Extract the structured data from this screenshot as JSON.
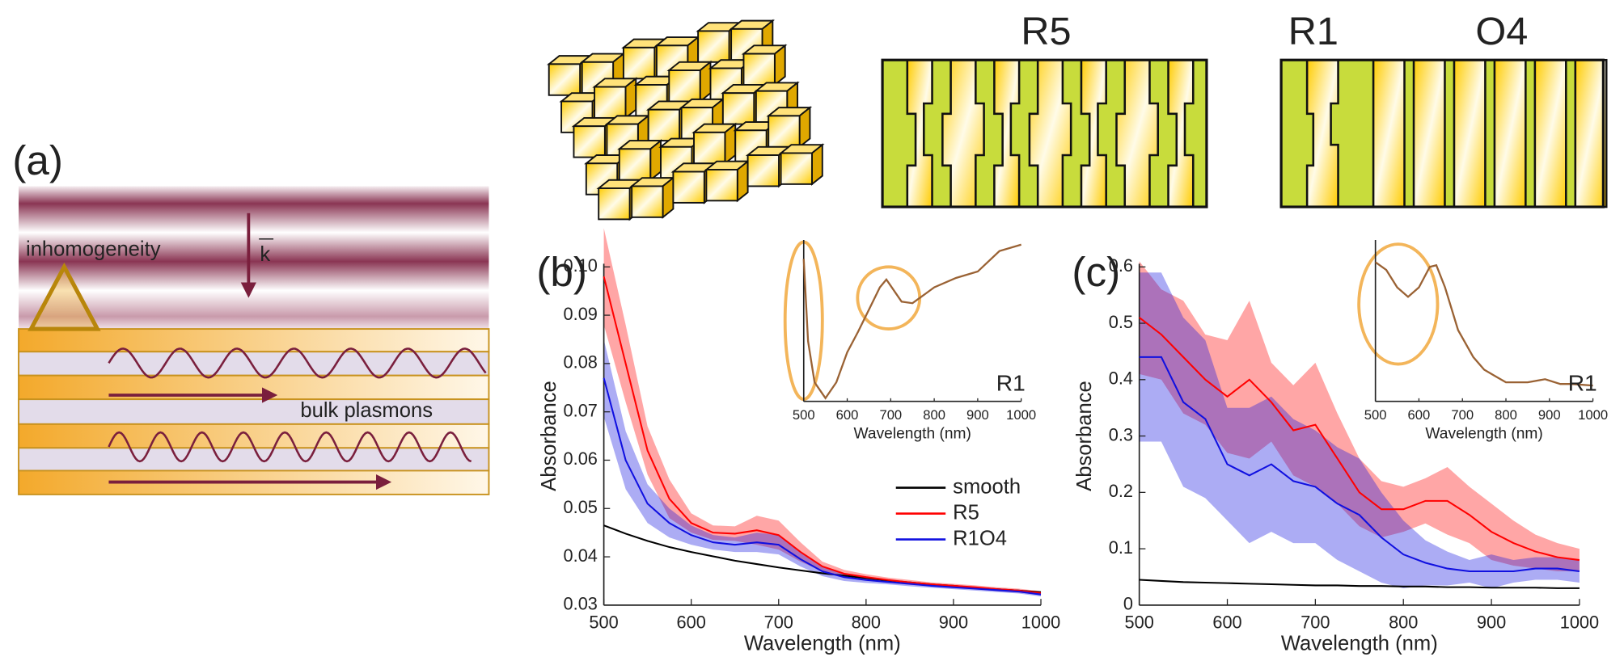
{
  "diagram": {
    "panel_label": "(a)",
    "labels": [
      "inhomogeneity",
      "k",
      "bulk plasmons"
    ]
  },
  "structures": {
    "labels": [
      "R5",
      "R1",
      "O4"
    ]
  },
  "chart_data": [
    {
      "type": "line",
      "panel_label": "(b)",
      "xlabel": "Wavelength (nm)",
      "ylabel": "Absorbance",
      "x": [
        500,
        525,
        550,
        575,
        600,
        625,
        650,
        675,
        700,
        725,
        750,
        775,
        800,
        825,
        850,
        875,
        900,
        925,
        950,
        975,
        1000
      ],
      "xlim": [
        500,
        1000
      ],
      "xticks": [
        500,
        600,
        700,
        800,
        900,
        1000
      ],
      "ylim": [
        0.03,
        0.1
      ],
      "yticks": [
        0.03,
        0.04,
        0.05,
        0.06,
        0.07,
        0.08,
        0.09,
        {
          "value": 0.1,
          "label": "0.10"
        }
      ],
      "legend": "center right",
      "series": [
        {
          "name": "smooth",
          "color": "#000000",
          "values": [
            0.0465,
            0.0448,
            0.0433,
            0.042,
            0.041,
            0.0401,
            0.0392,
            0.0385,
            0.0378,
            0.0372,
            0.0366,
            0.0361,
            0.0356,
            0.0351,
            0.0347,
            0.0343,
            0.034,
            0.0336,
            0.0333,
            0.033,
            0.0327
          ]
        },
        {
          "name": "R5",
          "color": "#ff0000",
          "values": [
            0.098,
            0.08,
            0.062,
            0.052,
            0.047,
            0.045,
            0.0448,
            0.0455,
            0.0445,
            0.041,
            0.038,
            0.0365,
            0.0358,
            0.0352,
            0.0347,
            0.0343,
            0.034,
            0.0337,
            0.0333,
            0.033,
            0.0325
          ],
          "error": [
            0.01,
            0.008,
            0.005,
            0.004,
            0.002,
            0.0015,
            0.0015,
            0.003,
            0.003,
            0.002,
            0.001,
            0.0008,
            0.0006,
            0.0005,
            0.0005,
            0.0004,
            0.0004,
            0.0004,
            0.0004,
            0.0004,
            0.0004
          ]
        },
        {
          "name": "R1O4",
          "color": "#1010e0",
          "values": [
            0.077,
            0.06,
            0.051,
            0.047,
            0.0445,
            0.043,
            0.0425,
            0.043,
            0.0425,
            0.0395,
            0.037,
            0.0358,
            0.0352,
            0.0348,
            0.0344,
            0.034,
            0.0337,
            0.0334,
            0.0331,
            0.0328,
            0.0322
          ],
          "error": [
            0.008,
            0.006,
            0.004,
            0.003,
            0.002,
            0.0015,
            0.0015,
            0.002,
            0.002,
            0.0015,
            0.001,
            0.0008,
            0.0006,
            0.0005,
            0.0005,
            0.0004,
            0.0004,
            0.0004,
            0.0004,
            0.0004,
            0.0004
          ]
        }
      ]
    },
    {
      "type": "line",
      "annotation": "R1",
      "xlabel": "Wavelength (nm)",
      "x": [
        500,
        510,
        525,
        550,
        575,
        600,
        625,
        650,
        675,
        690,
        700,
        725,
        750,
        775,
        800,
        850,
        900,
        950,
        1000
      ],
      "xlim": [
        500,
        1000
      ],
      "xticks": [
        500,
        600,
        700,
        800,
        900,
        1000
      ],
      "ylim": [
        0,
        1
      ],
      "series": [
        {
          "color": "#9a6234",
          "values": [
            0.9,
            0.38,
            0.12,
            0.02,
            0.12,
            0.31,
            0.44,
            0.58,
            0.72,
            0.77,
            0.73,
            0.63,
            0.62,
            0.67,
            0.72,
            0.78,
            0.82,
            0.95,
            0.99
          ]
        }
      ]
    },
    {
      "type": "line",
      "panel_label": "(c)",
      "xlabel": "Wavelength (nm)",
      "ylabel": "Absorbance",
      "x": [
        500,
        525,
        550,
        575,
        600,
        625,
        650,
        675,
        700,
        725,
        750,
        775,
        800,
        825,
        850,
        875,
        900,
        925,
        950,
        975,
        1000
      ],
      "xlim": [
        500,
        1000
      ],
      "xticks": [
        500,
        600,
        700,
        800,
        900,
        1000
      ],
      "ylim": [
        0,
        0.6
      ],
      "yticks": [
        0,
        0.1,
        0.2,
        0.3,
        0.4,
        0.5,
        0.6
      ],
      "series": [
        {
          "name": "smooth",
          "color": "#000000",
          "values": [
            0.045,
            0.043,
            0.041,
            0.04,
            0.039,
            0.038,
            0.037,
            0.036,
            0.035,
            0.035,
            0.034,
            0.034,
            0.033,
            0.033,
            0.032,
            0.032,
            0.031,
            0.031,
            0.031,
            0.03,
            0.03
          ]
        },
        {
          "name": "R5",
          "color": "#ff0000",
          "values": [
            0.51,
            0.48,
            0.44,
            0.4,
            0.37,
            0.4,
            0.36,
            0.31,
            0.32,
            0.26,
            0.2,
            0.17,
            0.17,
            0.185,
            0.185,
            0.16,
            0.13,
            0.11,
            0.095,
            0.085,
            0.08
          ],
          "error": [
            0.1,
            0.08,
            0.1,
            0.08,
            0.1,
            0.14,
            0.07,
            0.08,
            0.11,
            0.08,
            0.06,
            0.05,
            0.04,
            0.04,
            0.06,
            0.05,
            0.05,
            0.04,
            0.03,
            0.025,
            0.02
          ]
        },
        {
          "name": "R1O4",
          "color": "#1010e0",
          "values": [
            0.44,
            0.44,
            0.36,
            0.33,
            0.25,
            0.23,
            0.25,
            0.22,
            0.21,
            0.18,
            0.16,
            0.12,
            0.09,
            0.075,
            0.065,
            0.06,
            0.06,
            0.06,
            0.065,
            0.065,
            0.06
          ],
          "error": [
            0.15,
            0.15,
            0.15,
            0.14,
            0.1,
            0.12,
            0.12,
            0.11,
            0.1,
            0.1,
            0.1,
            0.08,
            0.06,
            0.04,
            0.03,
            0.02,
            0.03,
            0.02,
            0.02,
            0.02,
            0.02
          ]
        }
      ]
    },
    {
      "type": "line",
      "annotation": "R1",
      "xlabel": "Wavelength (nm)",
      "x": [
        500,
        525,
        550,
        575,
        600,
        625,
        640,
        660,
        690,
        725,
        750,
        775,
        800,
        850,
        890,
        925,
        950,
        1000
      ],
      "xlim": [
        500,
        1000
      ],
      "xticks": [
        500,
        600,
        700,
        800,
        900,
        1000
      ],
      "ylim": [
        0,
        1
      ],
      "series": [
        {
          "color": "#9a6234",
          "values": [
            0.88,
            0.83,
            0.72,
            0.66,
            0.72,
            0.85,
            0.86,
            0.72,
            0.45,
            0.28,
            0.2,
            0.16,
            0.12,
            0.12,
            0.14,
            0.11,
            0.11,
            0.1
          ]
        }
      ]
    }
  ]
}
